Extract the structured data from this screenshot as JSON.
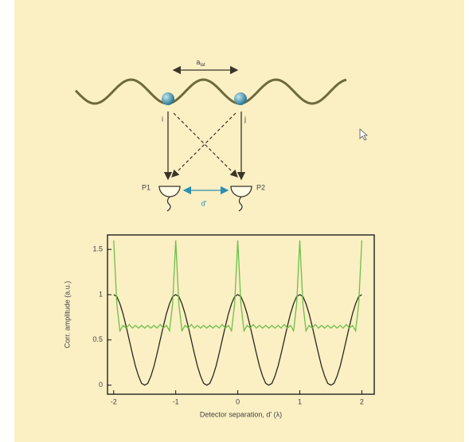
{
  "diagram": {
    "spacing_label": "a",
    "spacing_sub": "lat",
    "site_i": "i",
    "site_j": "j",
    "detector_1": "P1",
    "detector_2": "P2",
    "separation_label": "d'"
  },
  "chart_data": {
    "type": "line",
    "xlabel": "Detector separation, d' (λ)",
    "ylabel": "Corr. amplitude (a.u.)",
    "xlim": [
      -2.1,
      2.2
    ],
    "ylim": [
      -0.1,
      1.66
    ],
    "xticks": [
      -2,
      -1,
      0,
      1,
      2
    ],
    "yticks": [
      0,
      0.5,
      1,
      1.5
    ],
    "x": [
      -2,
      -1.95,
      -1.9,
      -1.85,
      -1.8,
      -1.75,
      -1.7,
      -1.65,
      -1.6,
      -1.55,
      -1.5,
      -1.45,
      -1.4,
      -1.35,
      -1.3,
      -1.25,
      -1.2,
      -1.15,
      -1.1,
      -1.05,
      -1,
      -0.95,
      -0.9,
      -0.85,
      -0.8,
      -0.75,
      -0.7,
      -0.65,
      -0.6,
      -0.55,
      -0.5,
      -0.45,
      -0.4,
      -0.35,
      -0.3,
      -0.25,
      -0.2,
      -0.15,
      -0.1,
      -0.05,
      0,
      0.05,
      0.1,
      0.15,
      0.2,
      0.25,
      0.3,
      0.35,
      0.4,
      0.45,
      0.5,
      0.55,
      0.6,
      0.65,
      0.7,
      0.75,
      0.8,
      0.85,
      0.9,
      0.95,
      1,
      1.05,
      1.1,
      1.15,
      1.2,
      1.25,
      1.3,
      1.35,
      1.4,
      1.45,
      1.5,
      1.55,
      1.6,
      1.65,
      1.7,
      1.75,
      1.8,
      1.85,
      1.9,
      1.95,
      2
    ],
    "series": [
      {
        "color": "#2a2a1e",
        "values": [
          1,
          0.98,
          0.9,
          0.79,
          0.65,
          0.5,
          0.35,
          0.21,
          0.1,
          0.02,
          0,
          0.02,
          0.1,
          0.21,
          0.35,
          0.5,
          0.65,
          0.79,
          0.9,
          0.98,
          1,
          0.98,
          0.9,
          0.79,
          0.65,
          0.5,
          0.35,
          0.21,
          0.1,
          0.02,
          0,
          0.02,
          0.1,
          0.21,
          0.35,
          0.5,
          0.65,
          0.79,
          0.9,
          0.98,
          1,
          0.98,
          0.9,
          0.79,
          0.65,
          0.5,
          0.35,
          0.21,
          0.1,
          0.02,
          0,
          0.02,
          0.1,
          0.21,
          0.35,
          0.5,
          0.65,
          0.79,
          0.9,
          0.98,
          1,
          0.98,
          0.9,
          0.79,
          0.65,
          0.5,
          0.35,
          0.21,
          0.1,
          0.02,
          0,
          0.02,
          0.1,
          0.21,
          0.35,
          0.5,
          0.65,
          0.79,
          0.9,
          0.98,
          1
        ]
      },
      {
        "color": "#6cc04a",
        "values": [
          1.6,
          0.9,
          0.6,
          0.66,
          0.63,
          0.67,
          0.63,
          0.66,
          0.63,
          0.66,
          0.63,
          0.66,
          0.63,
          0.66,
          0.63,
          0.67,
          0.63,
          0.66,
          0.6,
          0.9,
          1.6,
          0.9,
          0.6,
          0.66,
          0.63,
          0.67,
          0.63,
          0.66,
          0.63,
          0.66,
          0.63,
          0.66,
          0.63,
          0.66,
          0.63,
          0.67,
          0.63,
          0.66,
          0.6,
          0.9,
          1.6,
          0.9,
          0.6,
          0.66,
          0.63,
          0.67,
          0.63,
          0.66,
          0.63,
          0.66,
          0.63,
          0.66,
          0.63,
          0.66,
          0.63,
          0.67,
          0.63,
          0.66,
          0.6,
          0.9,
          1.6,
          0.9,
          0.6,
          0.66,
          0.63,
          0.67,
          0.63,
          0.66,
          0.63,
          0.66,
          0.63,
          0.66,
          0.63,
          0.66,
          0.63,
          0.67,
          0.63,
          0.66,
          0.6,
          0.9,
          1.6
        ]
      }
    ]
  }
}
